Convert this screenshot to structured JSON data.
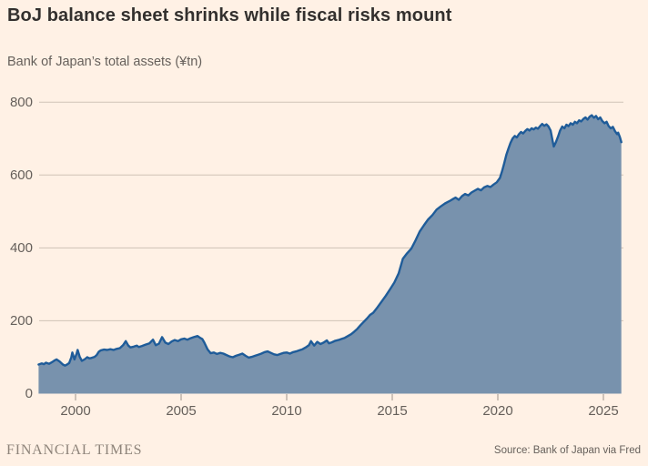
{
  "header": {
    "title": "BoJ balance sheet shrinks while fiscal risks mount",
    "subtitle": "Bank of Japan’s total assets (¥tn)"
  },
  "footer": {
    "brand": "FINANCIAL TIMES",
    "source": "Source: Bank of Japan via Fred"
  },
  "colors": {
    "background": "#fff1e5",
    "area_fill": "#7892ad",
    "line": "#1f5c99",
    "gridline": "#cfc3b6",
    "tick_mark": "#9c938a",
    "axis_text": "#66605b",
    "title_text": "#33302e",
    "brand_text": "#8e847a"
  },
  "chart_data": {
    "type": "area",
    "title": "BoJ balance sheet shrinks while fiscal risks mount",
    "subtitle": "Bank of Japan’s total assets (¥tn)",
    "xlabel": "",
    "ylabel": "¥tn",
    "grid": "horizontal",
    "legend": "none",
    "x_range": [
      1998.25,
      2025.85
    ],
    "y_range": [
      0,
      800
    ],
    "x_ticks": [
      2000,
      2005,
      2010,
      2015,
      2020,
      2025
    ],
    "y_ticks": [
      0,
      200,
      400,
      600,
      800
    ],
    "series": [
      {
        "name": "BoJ total assets (¥tn)",
        "x": [
          1998.25,
          1998.4,
          1998.5,
          1998.6,
          1998.75,
          1998.9,
          1999.0,
          1999.1,
          1999.25,
          1999.4,
          1999.5,
          1999.6,
          1999.7,
          1999.8,
          1999.85,
          1999.95,
          2000.05,
          2000.1,
          2000.2,
          2000.3,
          2000.45,
          2000.55,
          2000.65,
          2000.75,
          2000.9,
          2001.0,
          2001.1,
          2001.2,
          2001.35,
          2001.5,
          2001.65,
          2001.8,
          2001.95,
          2002.1,
          2002.25,
          2002.38,
          2002.5,
          2002.6,
          2002.75,
          2002.9,
          2003.0,
          2003.15,
          2003.3,
          2003.5,
          2003.67,
          2003.8,
          2003.95,
          2004.1,
          2004.25,
          2004.4,
          2004.55,
          2004.7,
          2004.85,
          2005.0,
          2005.15,
          2005.3,
          2005.45,
          2005.6,
          2005.78,
          2005.9,
          2006.0,
          2006.1,
          2006.25,
          2006.4,
          2006.55,
          2006.7,
          2006.85,
          2007.0,
          2007.15,
          2007.3,
          2007.45,
          2007.6,
          2007.75,
          2007.9,
          2008.05,
          2008.2,
          2008.35,
          2008.5,
          2008.65,
          2008.8,
          2008.95,
          2009.1,
          2009.25,
          2009.4,
          2009.55,
          2009.7,
          2009.85,
          2010.0,
          2010.15,
          2010.3,
          2010.45,
          2010.6,
          2010.75,
          2010.9,
          2011.05,
          2011.15,
          2011.3,
          2011.45,
          2011.6,
          2011.75,
          2011.9,
          2012.0,
          2012.15,
          2012.3,
          2012.45,
          2012.6,
          2012.75,
          2012.9,
          2013.05,
          2013.2,
          2013.35,
          2013.5,
          2013.65,
          2013.8,
          2013.95,
          2014.1,
          2014.3,
          2014.5,
          2014.7,
          2014.9,
          2015.1,
          2015.3,
          2015.5,
          2015.7,
          2015.9,
          2016.1,
          2016.3,
          2016.5,
          2016.7,
          2016.9,
          2017.1,
          2017.3,
          2017.5,
          2017.7,
          2017.9,
          2018.0,
          2018.15,
          2018.3,
          2018.45,
          2018.6,
          2018.75,
          2018.9,
          2019.05,
          2019.2,
          2019.35,
          2019.5,
          2019.65,
          2019.8,
          2019.95,
          2020.1,
          2020.2,
          2020.3,
          2020.4,
          2020.5,
          2020.6,
          2020.7,
          2020.8,
          2020.9,
          2021.0,
          2021.1,
          2021.2,
          2021.3,
          2021.4,
          2021.5,
          2021.6,
          2021.7,
          2021.8,
          2021.9,
          2022.0,
          2022.1,
          2022.2,
          2022.3,
          2022.4,
          2022.5,
          2022.6,
          2022.65,
          2022.75,
          2022.85,
          2022.95,
          2023.05,
          2023.15,
          2023.25,
          2023.35,
          2023.45,
          2023.55,
          2023.65,
          2023.75,
          2023.85,
          2023.95,
          2024.05,
          2024.15,
          2024.25,
          2024.35,
          2024.45,
          2024.55,
          2024.65,
          2024.75,
          2024.85,
          2024.95,
          2025.05,
          2025.15,
          2025.25,
          2025.35,
          2025.45,
          2025.55,
          2025.65,
          2025.7,
          2025.78,
          2025.85
        ],
        "y": [
          80,
          83,
          81,
          85,
          82,
          87,
          91,
          94,
          88,
          80,
          77,
          80,
          84,
          100,
          113,
          94,
          110,
          120,
          101,
          90,
          95,
          100,
          97,
          98,
          101,
          106,
          115,
          119,
          121,
          120,
          122,
          120,
          123,
          125,
          133,
          144,
          132,
          127,
          129,
          132,
          128,
          131,
          134,
          138,
          148,
          133,
          137,
          155,
          140,
          136,
          143,
          147,
          144,
          149,
          151,
          148,
          152,
          155,
          158,
          153,
          150,
          140,
          122,
          111,
          113,
          109,
          112,
          110,
          106,
          102,
          100,
          104,
          107,
          110,
          104,
          99,
          101,
          104,
          107,
          110,
          114,
          116,
          112,
          108,
          106,
          109,
          112,
          113,
          110,
          114,
          116,
          119,
          122,
          127,
          133,
          144,
          132,
          142,
          136,
          140,
          146,
          138,
          141,
          145,
          147,
          150,
          153,
          158,
          163,
          170,
          178,
          188,
          197,
          206,
          216,
          222,
          237,
          253,
          269,
          287,
          305,
          330,
          370,
          385,
          398,
          420,
          445,
          462,
          478,
          490,
          505,
          514,
          522,
          528,
          535,
          538,
          532,
          542,
          548,
          544,
          552,
          557,
          562,
          558,
          566,
          570,
          567,
          574,
          580,
          592,
          610,
          632,
          655,
          672,
          688,
          700,
          707,
          703,
          712,
          718,
          714,
          721,
          726,
          722,
          728,
          725,
          730,
          727,
          734,
          740,
          735,
          739,
          733,
          722,
          692,
          678,
          690,
          705,
          722,
          733,
          728,
          738,
          734,
          742,
          738,
          746,
          742,
          750,
          747,
          754,
          758,
          752,
          760,
          764,
          757,
          762,
          753,
          758,
          748,
          742,
          746,
          734,
          728,
          732,
          720,
          712,
          716,
          704,
          690
        ]
      }
    ]
  }
}
